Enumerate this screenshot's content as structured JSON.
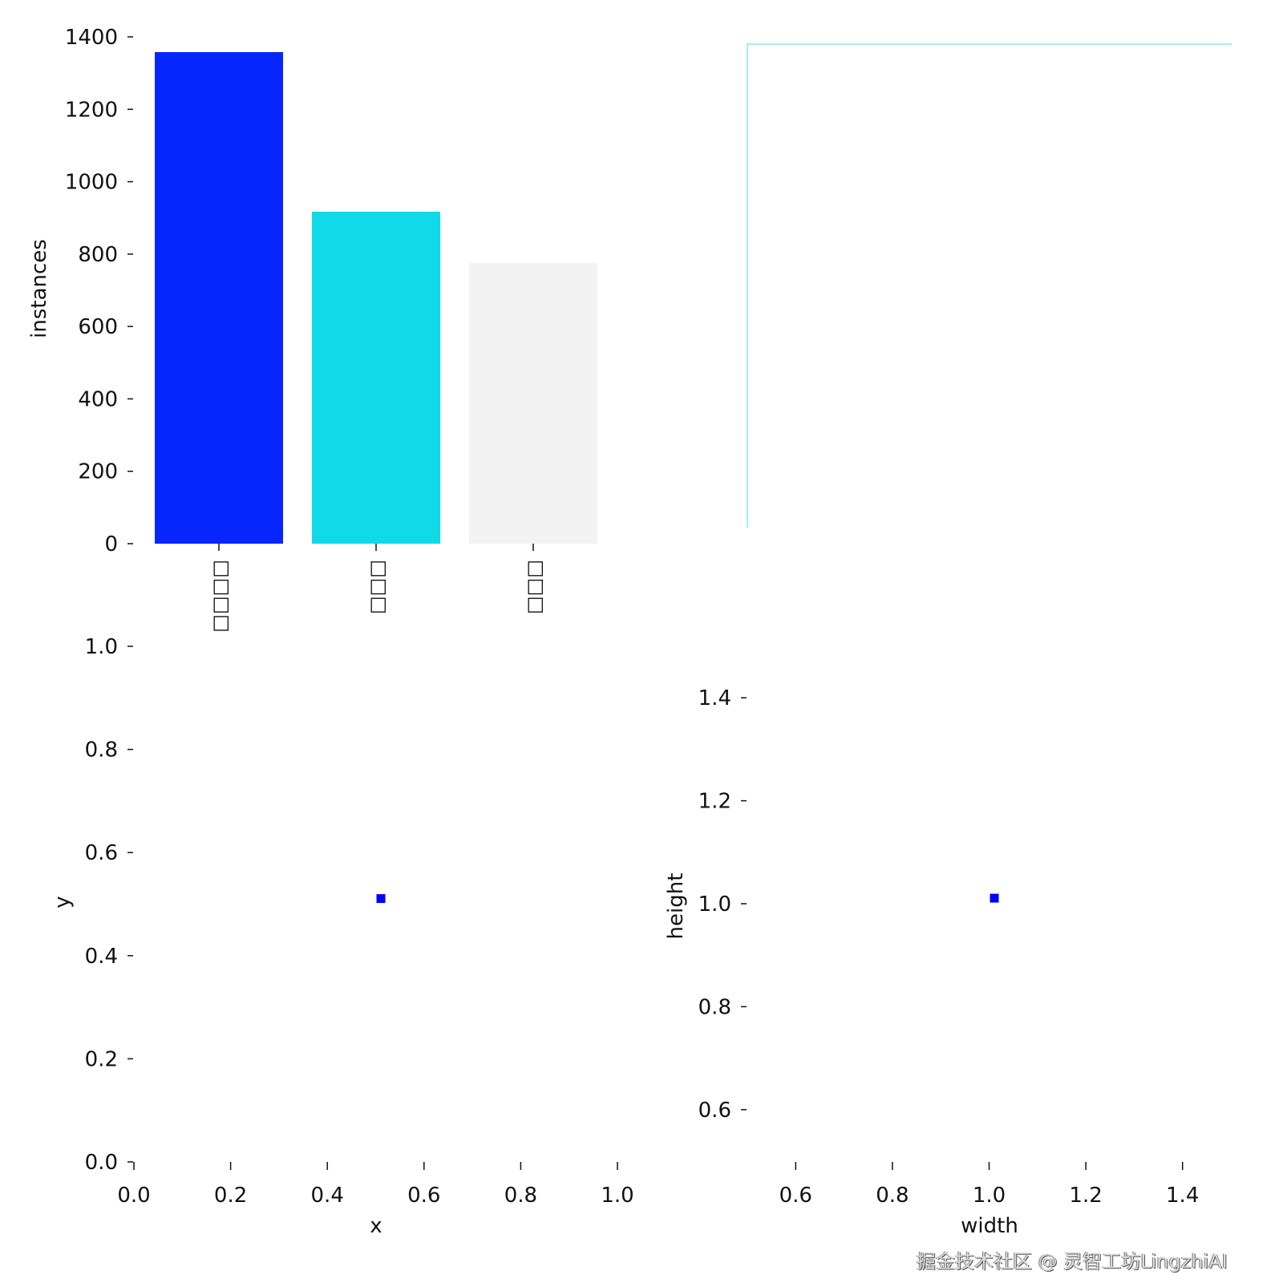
{
  "chart_data": [
    {
      "type": "bar",
      "ylabel": "instances",
      "categories": [
        "□□□□",
        "□□□",
        "□□□"
      ],
      "values": [
        1358,
        917,
        775
      ],
      "colors": [
        "#0726fe",
        "#10dae8",
        "#f2f2f2"
      ],
      "ylim": [
        0,
        1400
      ],
      "yticks": [
        "0",
        "200",
        "400",
        "600",
        "800",
        "1000",
        "1200",
        "1400"
      ]
    },
    {
      "type": "image",
      "box_color": "#8fe3ec"
    },
    {
      "type": "scatter",
      "xlabel": "x",
      "ylabel": "y",
      "xlim": [
        0,
        1
      ],
      "ylim": [
        0,
        1
      ],
      "xticks": [
        "0.0",
        "0.2",
        "0.4",
        "0.6",
        "0.8",
        "1.0"
      ],
      "yticks": [
        "0.0",
        "0.2",
        "0.4",
        "0.6",
        "0.8",
        "1.0"
      ],
      "points": [
        [
          0.51,
          0.51
        ]
      ],
      "color": "#0000ff"
    },
    {
      "type": "scatter",
      "xlabel": "width",
      "ylabel": "height",
      "xlim": [
        0.5,
        1.5
      ],
      "ylim": [
        0.5,
        1.5
      ],
      "xticks": [
        "0.6",
        "0.8",
        "1.0",
        "1.2",
        "1.4"
      ],
      "yticks": [
        "0.6",
        "0.8",
        "1.0",
        "1.2",
        "1.4"
      ],
      "points": [
        [
          1.01,
          1.01
        ]
      ],
      "color": "#0000ff"
    }
  ],
  "watermark": "掘金技术社区 @ 灵智工坊LingzhiAI"
}
